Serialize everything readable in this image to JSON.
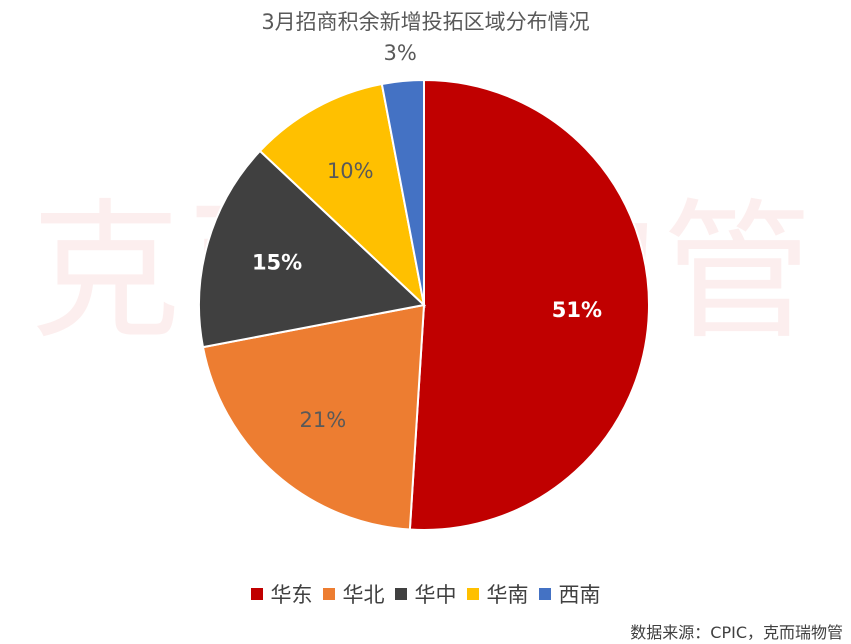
{
  "chart_data": {
    "type": "pie",
    "title": "3月招商积余新增投拓区域分布情况",
    "categories": [
      "华东",
      "华北",
      "华中",
      "华南",
      "西南"
    ],
    "values": [
      51,
      21,
      15,
      10,
      3
    ],
    "labels": [
      "51%",
      "21%",
      "15%",
      "10%",
      "3%"
    ],
    "colors": [
      "#C00000",
      "#ED7D31",
      "#404040",
      "#FFC000",
      "#4472C4"
    ],
    "label_colors": [
      "#ffffff",
      "#595959",
      "#ffffff",
      "#595959",
      "#595959"
    ],
    "legend_position": "bottom",
    "start_angle_deg": 0,
    "direction": "clockwise"
  },
  "watermark": "克而瑞物管",
  "source": "数据来源：CPIC，克而瑞物管"
}
